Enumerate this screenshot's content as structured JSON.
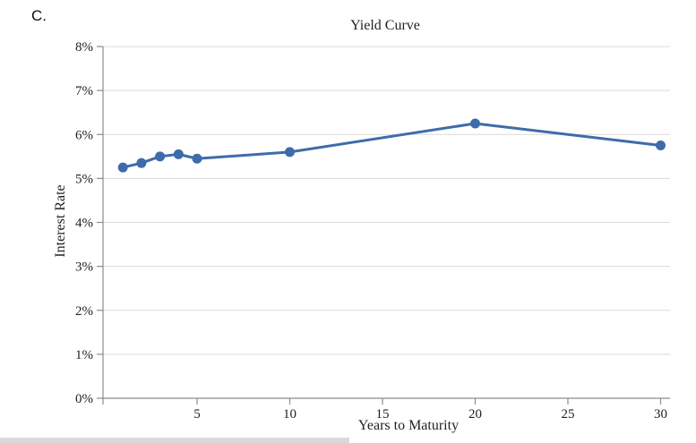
{
  "page": {
    "label": "C."
  },
  "chart_data": {
    "type": "line",
    "title": "Yield Curve",
    "xlabel": "Years to Maturity",
    "ylabel": "Interest Rate",
    "x": [
      1,
      2,
      3,
      4,
      5,
      10,
      20,
      30
    ],
    "y": [
      5.25,
      5.35,
      5.5,
      5.55,
      5.45,
      5.6,
      6.25,
      5.75
    ],
    "y_unit": "percent",
    "xlim": [
      0,
      30
    ],
    "ylim": [
      0,
      8
    ],
    "x_ticks": [
      5,
      10,
      15,
      20,
      25,
      30
    ],
    "y_ticks": [
      0,
      1,
      2,
      3,
      4,
      5,
      6,
      7,
      8
    ],
    "y_tick_labels": [
      "0%",
      "1%",
      "2%",
      "3%",
      "4%",
      "5%",
      "6%",
      "7%",
      "8%"
    ],
    "grid": "horizontal",
    "legend": "none",
    "marker": "circle",
    "line_color": "#3e6caa",
    "gridline_color": "#d9d9d9",
    "axis_color": "#8c8c8c",
    "text_color": "#1f1f1f"
  }
}
